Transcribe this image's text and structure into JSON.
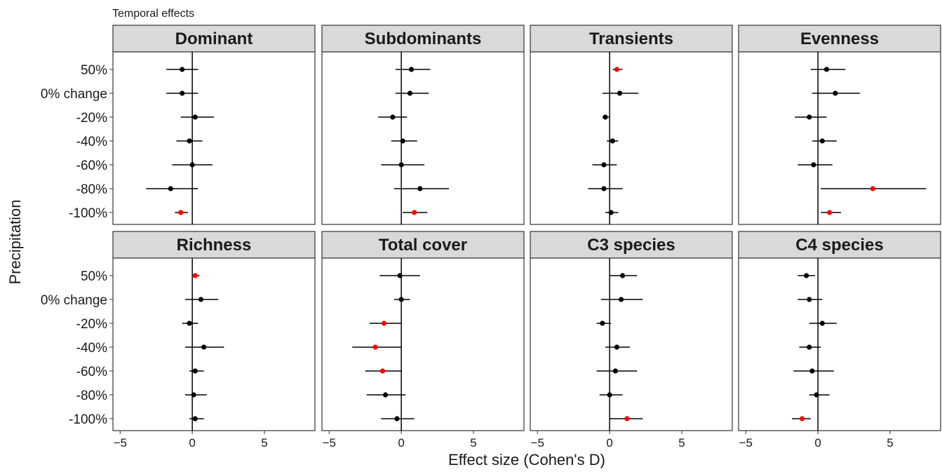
{
  "chart_data": {
    "type": "scatter",
    "title": "Temporal effects",
    "xlabel": "Effect size (Cohen's D)",
    "ylabel": "Precipitation",
    "categories": [
      "50%",
      "0% change",
      "-20%",
      "-40%",
      "-60%",
      "-80%",
      "-100%"
    ],
    "xlim": [
      -5.5,
      8.5
    ],
    "xticks": [
      -5,
      0,
      5
    ],
    "xtick_labels": [
      "−5",
      "0",
      "5"
    ],
    "grid": false,
    "colors": {
      "nonsignificant": "#000000",
      "significant": "#ff0000",
      "strip_bg": "#d9d9d9"
    },
    "panels": [
      {
        "name": "Dominant",
        "points": [
          {
            "y": "50%",
            "x": -0.7,
            "lo": -1.8,
            "hi": 0.4,
            "sig": false
          },
          {
            "y": "0% change",
            "x": -0.7,
            "lo": -1.8,
            "hi": 0.4,
            "sig": false
          },
          {
            "y": "-20%",
            "x": 0.2,
            "lo": -0.8,
            "hi": 1.5,
            "sig": false
          },
          {
            "y": "-40%",
            "x": -0.2,
            "lo": -1.1,
            "hi": 0.7,
            "sig": false
          },
          {
            "y": "-60%",
            "x": 0.0,
            "lo": -1.4,
            "hi": 1.4,
            "sig": false
          },
          {
            "y": "-80%",
            "x": -1.5,
            "lo": -3.2,
            "hi": 0.4,
            "sig": false
          },
          {
            "y": "-100%",
            "x": -0.8,
            "lo": -1.2,
            "hi": -0.3,
            "sig": true
          }
        ]
      },
      {
        "name": "Subdominants",
        "points": [
          {
            "y": "50%",
            "x": 0.7,
            "lo": -0.4,
            "hi": 2.0,
            "sig": false
          },
          {
            "y": "0% change",
            "x": 0.6,
            "lo": -0.4,
            "hi": 1.9,
            "sig": false
          },
          {
            "y": "-20%",
            "x": -0.6,
            "lo": -1.6,
            "hi": 0.4,
            "sig": false
          },
          {
            "y": "-40%",
            "x": 0.1,
            "lo": -0.7,
            "hi": 1.1,
            "sig": false
          },
          {
            "y": "-60%",
            "x": 0.0,
            "lo": -1.4,
            "hi": 1.6,
            "sig": false
          },
          {
            "y": "-80%",
            "x": 1.3,
            "lo": -0.5,
            "hi": 3.3,
            "sig": false
          },
          {
            "y": "-100%",
            "x": 0.9,
            "lo": 0.1,
            "hi": 1.8,
            "sig": true
          }
        ]
      },
      {
        "name": "Transients",
        "points": [
          {
            "y": "50%",
            "x": 0.5,
            "lo": 0.2,
            "hi": 0.9,
            "sig": true
          },
          {
            "y": "0% change",
            "x": 0.7,
            "lo": -0.5,
            "hi": 2.0,
            "sig": false
          },
          {
            "y": "-20%",
            "x": -0.3,
            "lo": -0.5,
            "hi": 0.0,
            "sig": false
          },
          {
            "y": "-40%",
            "x": 0.2,
            "lo": -0.2,
            "hi": 0.6,
            "sig": false
          },
          {
            "y": "-60%",
            "x": -0.4,
            "lo": -1.2,
            "hi": 0.5,
            "sig": false
          },
          {
            "y": "-80%",
            "x": -0.4,
            "lo": -1.5,
            "hi": 0.9,
            "sig": false
          },
          {
            "y": "-100%",
            "x": 0.1,
            "lo": -0.3,
            "hi": 0.6,
            "sig": false
          }
        ]
      },
      {
        "name": "Evenness",
        "points": [
          {
            "y": "50%",
            "x": 0.6,
            "lo": -0.5,
            "hi": 1.9,
            "sig": false
          },
          {
            "y": "0% change",
            "x": 1.2,
            "lo": -0.4,
            "hi": 2.9,
            "sig": false
          },
          {
            "y": "-20%",
            "x": -0.6,
            "lo": -1.6,
            "hi": 0.6,
            "sig": false
          },
          {
            "y": "-40%",
            "x": 0.3,
            "lo": -0.4,
            "hi": 1.3,
            "sig": false
          },
          {
            "y": "-60%",
            "x": -0.3,
            "lo": -1.4,
            "hi": 1.0,
            "sig": false
          },
          {
            "y": "-80%",
            "x": 3.8,
            "lo": 0.2,
            "hi": 7.5,
            "sig": true
          },
          {
            "y": "-100%",
            "x": 0.8,
            "lo": 0.2,
            "hi": 1.6,
            "sig": true
          }
        ]
      },
      {
        "name": "Richness",
        "points": [
          {
            "y": "50%",
            "x": 0.2,
            "lo": 0.1,
            "hi": 0.5,
            "sig": true
          },
          {
            "y": "0% change",
            "x": 0.6,
            "lo": -0.5,
            "hi": 1.8,
            "sig": false
          },
          {
            "y": "-20%",
            "x": -0.2,
            "lo": -0.7,
            "hi": 0.4,
            "sig": false
          },
          {
            "y": "-40%",
            "x": 0.8,
            "lo": -0.5,
            "hi": 2.2,
            "sig": false
          },
          {
            "y": "-60%",
            "x": 0.2,
            "lo": -0.2,
            "hi": 0.8,
            "sig": false
          },
          {
            "y": "-80%",
            "x": 0.1,
            "lo": -0.5,
            "hi": 1.0,
            "sig": false
          },
          {
            "y": "-100%",
            "x": 0.2,
            "lo": -0.2,
            "hi": 0.8,
            "sig": false
          }
        ]
      },
      {
        "name": "Total cover",
        "points": [
          {
            "y": "50%",
            "x": -0.1,
            "lo": -1.5,
            "hi": 1.3,
            "sig": false
          },
          {
            "y": "0% change",
            "x": 0.0,
            "lo": -0.5,
            "hi": 0.6,
            "sig": false
          },
          {
            "y": "-20%",
            "x": -1.2,
            "lo": -2.2,
            "hi": 0.0,
            "sig": true
          },
          {
            "y": "-40%",
            "x": -1.8,
            "lo": -3.4,
            "hi": 0.0,
            "sig": true
          },
          {
            "y": "-60%",
            "x": -1.3,
            "lo": -2.5,
            "hi": 0.0,
            "sig": true
          },
          {
            "y": "-80%",
            "x": -1.1,
            "lo": -2.4,
            "hi": 0.3,
            "sig": false
          },
          {
            "y": "-100%",
            "x": -0.3,
            "lo": -1.4,
            "hi": 0.9,
            "sig": false
          }
        ]
      },
      {
        "name": "C3 species",
        "points": [
          {
            "y": "50%",
            "x": 0.9,
            "lo": 0.0,
            "hi": 1.9,
            "sig": false
          },
          {
            "y": "0% change",
            "x": 0.8,
            "lo": -0.6,
            "hi": 2.3,
            "sig": false
          },
          {
            "y": "-20%",
            "x": -0.5,
            "lo": -0.9,
            "hi": 0.1,
            "sig": false
          },
          {
            "y": "-40%",
            "x": 0.5,
            "lo": -0.3,
            "hi": 1.4,
            "sig": false
          },
          {
            "y": "-60%",
            "x": 0.4,
            "lo": -0.9,
            "hi": 1.9,
            "sig": false
          },
          {
            "y": "-80%",
            "x": 0.0,
            "lo": -0.7,
            "hi": 0.9,
            "sig": false
          },
          {
            "y": "-100%",
            "x": 1.2,
            "lo": 0.0,
            "hi": 2.3,
            "sig": true
          }
        ]
      },
      {
        "name": "C4 species",
        "points": [
          {
            "y": "50%",
            "x": -0.8,
            "lo": -1.4,
            "hi": -0.2,
            "sig": false
          },
          {
            "y": "0% change",
            "x": -0.6,
            "lo": -1.4,
            "hi": 0.3,
            "sig": false
          },
          {
            "y": "-20%",
            "x": 0.3,
            "lo": -0.6,
            "hi": 1.3,
            "sig": false
          },
          {
            "y": "-40%",
            "x": -0.6,
            "lo": -1.3,
            "hi": 0.2,
            "sig": false
          },
          {
            "y": "-60%",
            "x": -0.4,
            "lo": -1.7,
            "hi": 1.1,
            "sig": false
          },
          {
            "y": "-80%",
            "x": -0.1,
            "lo": -0.6,
            "hi": 0.8,
            "sig": false
          },
          {
            "y": "-100%",
            "x": -1.1,
            "lo": -1.8,
            "hi": -0.5,
            "sig": true
          }
        ]
      }
    ]
  }
}
